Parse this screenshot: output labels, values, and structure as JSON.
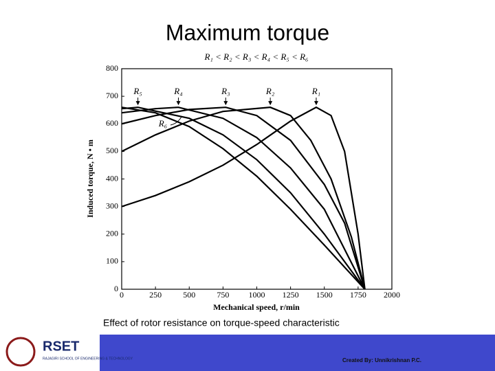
{
  "title": "Maximum torque",
  "chart_data": {
    "type": "line",
    "subtitle": "R₁ < R₂ < R₃ < R₄ < R₅ < R₆",
    "xlabel": "Mechanical speed, r/min",
    "ylabel": "Induced torque, N • m",
    "xlim": [
      0,
      2000
    ],
    "xticks": [
      0,
      250,
      500,
      750,
      1000,
      1250,
      1500,
      1750,
      2000
    ],
    "ylim": [
      0,
      800
    ],
    "yticks": [
      0,
      100,
      200,
      300,
      400,
      500,
      600,
      700,
      800
    ],
    "series": [
      {
        "name": "R₁",
        "color": "#000000",
        "x": [
          0,
          250,
          500,
          750,
          1000,
          1250,
          1440,
          1550,
          1650,
          1750,
          1800
        ],
        "values": [
          300,
          340,
          390,
          450,
          525,
          610,
          660,
          630,
          500,
          200,
          0
        ]
      },
      {
        "name": "R₂",
        "color": "#000000",
        "x": [
          0,
          250,
          500,
          750,
          1100,
          1250,
          1400,
          1550,
          1700,
          1800
        ],
        "values": [
          500,
          560,
          610,
          645,
          660,
          630,
          540,
          400,
          190,
          0
        ]
      },
      {
        "name": "R₃",
        "color": "#000000",
        "x": [
          0,
          250,
          500,
          770,
          1000,
          1250,
          1500,
          1650,
          1800
        ],
        "values": [
          600,
          630,
          652,
          660,
          630,
          540,
          380,
          240,
          0
        ]
      },
      {
        "name": "R₄",
        "color": "#000000",
        "x": [
          0,
          250,
          420,
          750,
          1000,
          1250,
          1500,
          1800
        ],
        "values": [
          640,
          655,
          660,
          620,
          550,
          440,
          290,
          0
        ]
      },
      {
        "name": "R₅",
        "color": "#000000",
        "x": [
          0,
          120,
          500,
          750,
          1000,
          1250,
          1500,
          1800
        ],
        "values": [
          655,
          660,
          620,
          560,
          470,
          350,
          200,
          0
        ]
      },
      {
        "name": "R₆",
        "color": "#000000",
        "x": [
          0,
          250,
          500,
          750,
          1000,
          1250,
          1500,
          1800
        ],
        "values": [
          660,
          640,
          590,
          510,
          410,
          290,
          160,
          0
        ]
      }
    ]
  },
  "caption": "Effect of rotor resistance on torque-speed characteristic",
  "footer": {
    "logo": "RSET",
    "school": "RAJAGIRI SCHOOL OF ENGINEERING & TECHNOLOGY",
    "credit": "Created By: Unnikrishnan P.C."
  }
}
